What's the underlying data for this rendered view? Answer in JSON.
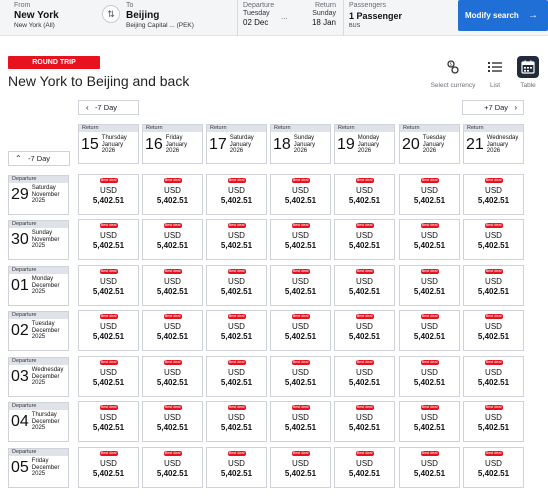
{
  "search": {
    "from_label": "From",
    "from_city": "New York",
    "from_airport": "New York (All)",
    "to_label": "To",
    "to_city": "Beijing",
    "to_airport": "Beijing Capital ... (PEK)",
    "departure_label": "Departure",
    "departure_weekday": "Tuesday",
    "departure_date": "02 Dec",
    "dots": "...",
    "return_label": "Return",
    "return_weekday": "Sunday",
    "return_date": "18 Jan",
    "passengers_label": "Passengers",
    "passengers_value": "1 Passenger",
    "cabin": "BUS",
    "modify_label": "Modify search"
  },
  "header": {
    "badge": "ROUND TRIP",
    "title": "New York to Beijing and back"
  },
  "toolbar": {
    "currency_label": "Select currency",
    "list_label": "List",
    "table_label": "Table"
  },
  "nav": {
    "prev_label": "-7 Day",
    "next_label": "+7 Day",
    "side_prev_label": "-7 Day"
  },
  "grid": {
    "return_label": "Return",
    "departure_label": "Departure",
    "best_deal_label": "Best deal",
    "currency": "USD",
    "return_dates": [
      {
        "day": "15",
        "weekday": "Thursday",
        "month": "January",
        "year": "2026"
      },
      {
        "day": "16",
        "weekday": "Friday",
        "month": "January",
        "year": "2026"
      },
      {
        "day": "17",
        "weekday": "Saturday",
        "month": "January",
        "year": "2026"
      },
      {
        "day": "18",
        "weekday": "Sunday",
        "month": "January",
        "year": "2026"
      },
      {
        "day": "19",
        "weekday": "Monday",
        "month": "January",
        "year": "2026"
      },
      {
        "day": "20",
        "weekday": "Tuesday",
        "month": "January",
        "year": "2026"
      },
      {
        "day": "21",
        "weekday": "Wednesday",
        "month": "January",
        "year": "2026"
      }
    ],
    "departure_dates": [
      {
        "day": "29",
        "weekday": "Saturday",
        "month": "November",
        "year": "2025"
      },
      {
        "day": "30",
        "weekday": "Sunday",
        "month": "November",
        "year": "2025"
      },
      {
        "day": "01",
        "weekday": "Monday",
        "month": "December",
        "year": "2025"
      },
      {
        "day": "02",
        "weekday": "Tuesday",
        "month": "December",
        "year": "2025"
      },
      {
        "day": "03",
        "weekday": "Wednesday",
        "month": "December",
        "year": "2025"
      },
      {
        "day": "04",
        "weekday": "Thursday",
        "month": "December",
        "year": "2025"
      },
      {
        "day": "05",
        "weekday": "Friday",
        "month": "December",
        "year": "2025"
      }
    ],
    "prices": [
      [
        "5,402.51",
        "5,402.51",
        "5,402.51",
        "5,402.51",
        "5,402.51",
        "5,402.51",
        "5,402.51"
      ],
      [
        "5,402.51",
        "5,402.51",
        "5,402.51",
        "5,402.51",
        "5,402.51",
        "5,402.51",
        "5,402.51"
      ],
      [
        "5,402.51",
        "5,402.51",
        "5,402.51",
        "5,402.51",
        "5,402.51",
        "5,402.51",
        "5,402.51"
      ],
      [
        "5,402.51",
        "5,402.51",
        "5,402.51",
        "5,402.51",
        "5,402.51",
        "5,402.51",
        "5,402.51"
      ],
      [
        "5,402.51",
        "5,402.51",
        "5,402.51",
        "5,402.51",
        "5,402.51",
        "5,402.51",
        "5,402.51"
      ],
      [
        "5,402.51",
        "5,402.51",
        "5,402.51",
        "5,402.51",
        "5,402.51",
        "5,402.51",
        "5,402.51"
      ],
      [
        "5,402.51",
        "5,402.51",
        "5,402.51",
        "5,402.51",
        "5,402.51",
        "5,402.51",
        "5,402.51"
      ]
    ]
  },
  "colors": {
    "accent": "#1f6fd6",
    "badge": "#e8121f",
    "table_active": "#222b3a"
  }
}
